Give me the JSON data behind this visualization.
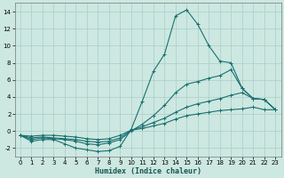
{
  "xlabel": "Humidex (Indice chaleur)",
  "ylabel": "",
  "bg_color": "#cce8e0",
  "grid_color": "#aacccc",
  "line_color": "#1a7070",
  "xlim": [
    -0.5,
    23.5
  ],
  "ylim": [
    -3.0,
    15.0
  ],
  "yticks": [
    -2,
    0,
    2,
    4,
    6,
    8,
    10,
    12,
    14
  ],
  "xticks": [
    0,
    1,
    2,
    3,
    4,
    5,
    6,
    7,
    8,
    9,
    10,
    11,
    12,
    13,
    14,
    15,
    16,
    17,
    18,
    19,
    20,
    21,
    22,
    23
  ],
  "lines": [
    {
      "x": [
        0,
        1,
        2,
        3,
        4,
        5,
        6,
        7,
        8,
        9,
        10,
        11,
        12,
        13,
        14,
        15,
        16,
        17,
        18,
        19,
        20,
        21,
        22,
        23
      ],
      "y": [
        -0.5,
        -1.2,
        -1.0,
        -1.0,
        -1.5,
        -2.0,
        -2.2,
        -2.4,
        -2.3,
        -1.8,
        0.2,
        3.5,
        7.0,
        9.0,
        13.5,
        14.2,
        12.5,
        10.0,
        8.2,
        8.0,
        5.0,
        3.8,
        3.7,
        2.5
      ]
    },
    {
      "x": [
        0,
        1,
        2,
        3,
        4,
        5,
        6,
        7,
        8,
        9,
        10,
        11,
        12,
        13,
        14,
        15,
        16,
        17,
        18,
        19,
        20,
        21,
        22,
        23
      ],
      "y": [
        -0.5,
        -1.0,
        -0.8,
        -0.9,
        -1.0,
        -1.2,
        -1.5,
        -1.6,
        -1.4,
        -1.0,
        0.0,
        0.8,
        1.8,
        3.0,
        4.5,
        5.5,
        5.8,
        6.2,
        6.5,
        7.2,
        5.0,
        3.8,
        3.7,
        2.5
      ]
    },
    {
      "x": [
        0,
        1,
        2,
        3,
        4,
        5,
        6,
        7,
        8,
        9,
        10,
        11,
        12,
        13,
        14,
        15,
        16,
        17,
        18,
        19,
        20,
        21,
        22,
        23
      ],
      "y": [
        -0.5,
        -0.8,
        -0.7,
        -0.8,
        -0.9,
        -1.0,
        -1.2,
        -1.3,
        -1.2,
        -0.8,
        0.1,
        0.5,
        1.0,
        1.5,
        2.2,
        2.8,
        3.2,
        3.5,
        3.8,
        4.2,
        4.5,
        3.8,
        3.7,
        2.5
      ]
    },
    {
      "x": [
        0,
        1,
        2,
        3,
        4,
        5,
        6,
        7,
        8,
        9,
        10,
        11,
        12,
        13,
        14,
        15,
        16,
        17,
        18,
        19,
        20,
        21,
        22,
        23
      ],
      "y": [
        -0.5,
        -0.6,
        -0.5,
        -0.5,
        -0.6,
        -0.7,
        -0.9,
        -1.0,
        -0.9,
        -0.5,
        0.1,
        0.3,
        0.6,
        0.9,
        1.4,
        1.8,
        2.0,
        2.2,
        2.4,
        2.5,
        2.6,
        2.8,
        2.5,
        2.5
      ]
    }
  ]
}
